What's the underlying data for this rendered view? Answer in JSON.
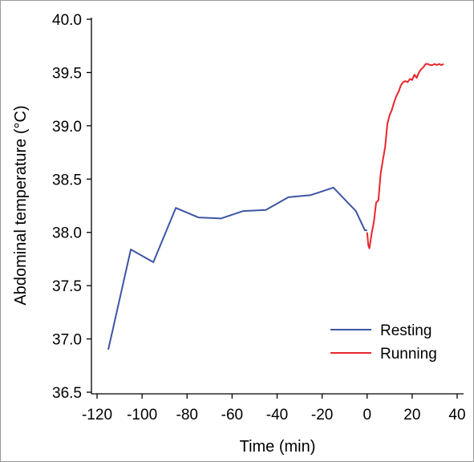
{
  "chart_data": {
    "type": "line",
    "title": "",
    "xlabel": "Time (min)",
    "ylabel": "Abdominal temperature (°C)",
    "xlim": [
      -120,
      40
    ],
    "ylim": [
      36.5,
      40.0
    ],
    "x_ticks": [
      -120,
      -100,
      -80,
      -60,
      -40,
      -20,
      0,
      20,
      40
    ],
    "y_ticks": [
      36.5,
      37.0,
      37.5,
      38.0,
      38.5,
      39.0,
      39.5,
      40.0
    ],
    "x_tick_labels": [
      "-120",
      "-100",
      "-80",
      "-60",
      "-40",
      "-20",
      "0",
      "20",
      "40"
    ],
    "y_tick_labels": [
      "36.5",
      "37.0",
      "37.5",
      "38.0",
      "38.5",
      "39.0",
      "39.5",
      "40.0"
    ],
    "legend_position": "bottom-right",
    "grid": false,
    "series": [
      {
        "name": "Resting",
        "color": "#3d55a4",
        "x": [
          -115,
          -105,
          -95,
          -85,
          -75,
          -65,
          -55,
          -45,
          -35,
          -25,
          -15,
          -5,
          -1,
          0
        ],
        "y": [
          36.9,
          37.84,
          37.72,
          38.23,
          38.14,
          38.13,
          38.2,
          38.21,
          38.33,
          38.35,
          38.42,
          38.2,
          38.02,
          38.02
        ]
      },
      {
        "name": "Running",
        "color": "#e8262b",
        "x": [
          0,
          0.5,
          1,
          2,
          3,
          4,
          5,
          6,
          7,
          8,
          9,
          10,
          11,
          12,
          13,
          14,
          15,
          16,
          17,
          18,
          19,
          20,
          21,
          22,
          23,
          24,
          25,
          26,
          27,
          28,
          29,
          30,
          31,
          32,
          33,
          34
        ],
        "y": [
          38.0,
          37.88,
          37.85,
          37.99,
          38.1,
          38.28,
          38.3,
          38.55,
          38.68,
          38.8,
          39.02,
          39.1,
          39.15,
          39.22,
          39.28,
          39.32,
          39.38,
          39.41,
          39.42,
          39.41,
          39.44,
          39.43,
          39.48,
          39.45,
          39.5,
          39.53,
          39.55,
          39.58,
          39.58,
          39.57,
          39.57,
          39.58,
          39.57,
          39.58,
          39.57,
          39.58
        ]
      }
    ]
  }
}
